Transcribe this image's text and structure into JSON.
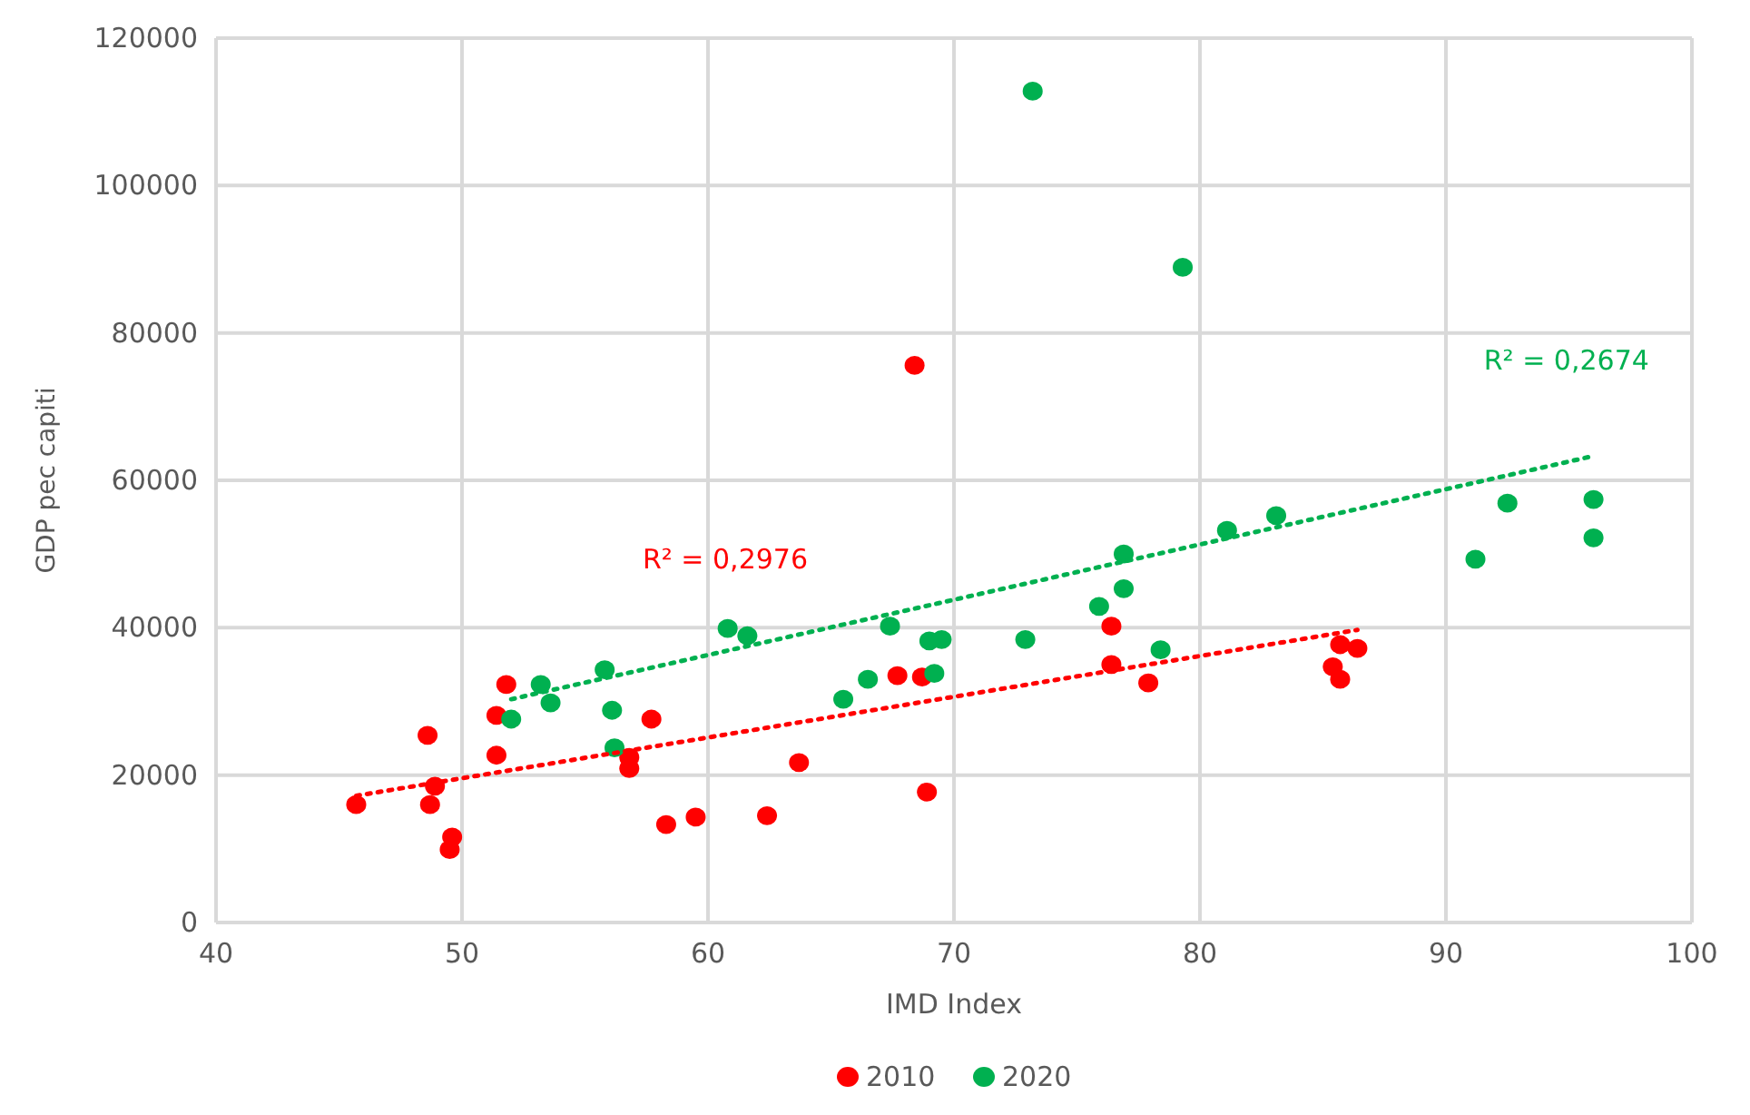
{
  "chart_data": {
    "type": "scatter",
    "xlabel": "IMD Index",
    "ylabel": "GDP pec capiti",
    "xlim": [
      40,
      100
    ],
    "xticks": [
      40,
      50,
      60,
      70,
      80,
      90,
      100
    ],
    "ylim": [
      0,
      120000
    ],
    "yticks": [
      0,
      20000,
      40000,
      60000,
      80000,
      100000,
      120000
    ],
    "grid": true,
    "legend": "bottom",
    "marker": "circle",
    "series": [
      {
        "name": "2010",
        "color": "#ff0000",
        "x": [
          45.7,
          48.6,
          48.9,
          48.7,
          49.6,
          49.5,
          51.8,
          51.4,
          51.4,
          57.7,
          56.8,
          56.8,
          58.3,
          59.5,
          62.4,
          63.7,
          67.7,
          68.7,
          68.9,
          68.4,
          76.4,
          76.4,
          77.9,
          85.7,
          86.4,
          85.4,
          85.7
        ],
        "values": [
          16000,
          25400,
          18500,
          16000,
          11600,
          9900,
          32300,
          28100,
          22700,
          27600,
          22400,
          20900,
          13300,
          14300,
          14500,
          21700,
          33500,
          33300,
          17700,
          75600,
          40200,
          35000,
          32500,
          37700,
          37200,
          34700,
          33000
        ]
      },
      {
        "name": "2020",
        "color": "#00b050",
        "x": [
          52.0,
          53.2,
          53.6,
          55.8,
          56.1,
          56.2,
          60.8,
          61.6,
          65.5,
          66.5,
          67.4,
          69.0,
          69.5,
          69.2,
          72.9,
          75.9,
          76.9,
          76.9,
          78.4,
          73.2,
          79.3,
          81.1,
          83.1,
          92.5,
          96.0,
          96.0,
          91.2
        ],
        "values": [
          27600,
          32300,
          29800,
          34300,
          28800,
          23700,
          39900,
          38900,
          30300,
          33000,
          40200,
          38200,
          38400,
          33800,
          38400,
          42900,
          45300,
          50000,
          37000,
          112800,
          88900,
          53200,
          55200,
          56900,
          57400,
          52200,
          49300
        ]
      },
      {
        "type": "line",
        "marker": "none",
        "color": "#ff0000",
        "line_style": "dotted",
        "x": [
          45.7,
          86.4
        ],
        "values": [
          17200,
          39700
        ]
      },
      {
        "type": "line",
        "marker": "none",
        "color": "#00b050",
        "line_style": "dotted",
        "x": [
          52.0,
          96.0
        ],
        "values": [
          30300,
          63300
        ]
      }
    ],
    "annotations": [
      "R² = 0,2976",
      "R² = 0,2674"
    ]
  }
}
